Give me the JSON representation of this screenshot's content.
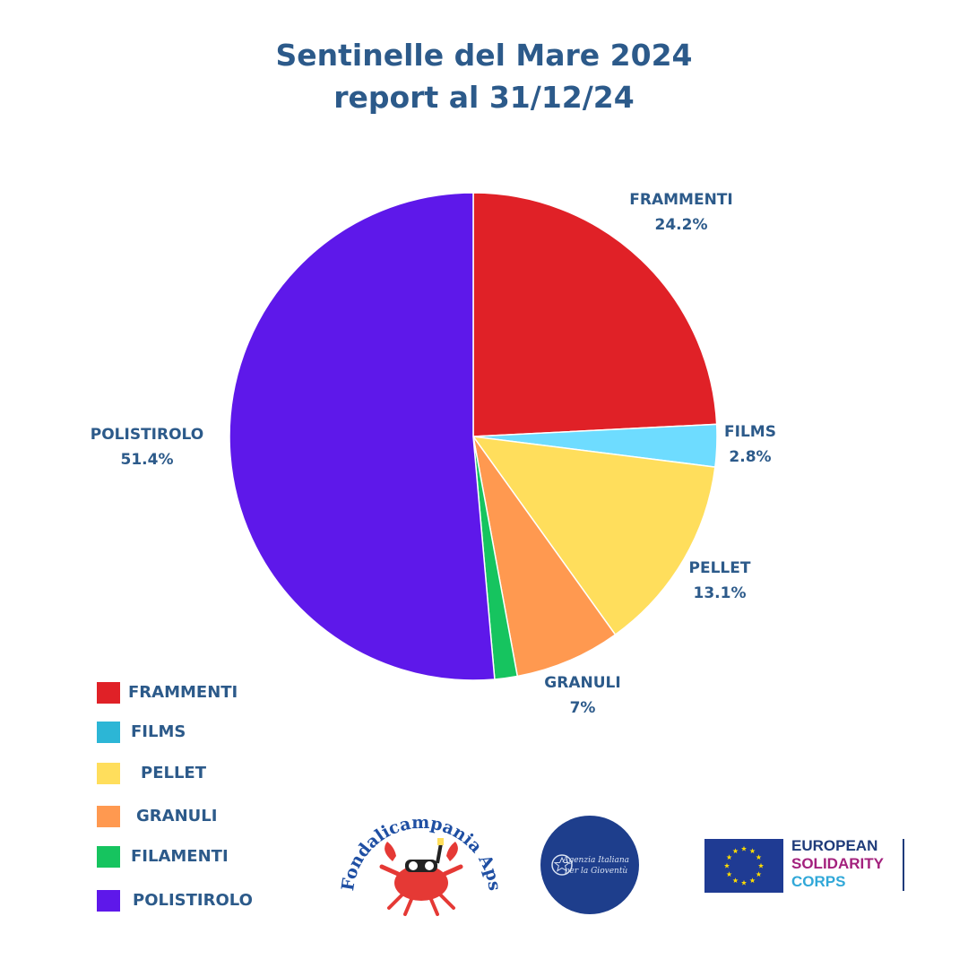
{
  "title": {
    "line1": "Sentinelle del Mare 2024",
    "line2": "report al 31/12/24"
  },
  "chart_data": {
    "type": "pie",
    "title": "Sentinelle del Mare 2024 report al 31/12/24",
    "slices": [
      {
        "label": "FRAMMENTI",
        "value": 24.2,
        "value_label": "24.2%",
        "color": "#e02127"
      },
      {
        "label": "FILMS",
        "value": 2.8,
        "value_label": "2.8%",
        "color": "#6edcff"
      },
      {
        "label": "PELLET",
        "value": 13.1,
        "value_label": "13.1%",
        "color": "#ffde5c"
      },
      {
        "label": "GRANULI",
        "value": 7,
        "value_label": "7%",
        "color": "#ff9950"
      },
      {
        "label": "FILAMENTI",
        "value": 1.5,
        "color": "#16c45f"
      },
      {
        "label": "POLISTIROLO",
        "value": 51.4,
        "value_label": "51.4%",
        "color": "#5e18ea"
      }
    ],
    "start_angle": "12 o'clock, clockwise",
    "legend_position": "bottom-left"
  },
  "legend": [
    {
      "label": "FRAMMENTI",
      "color": "#e02127"
    },
    {
      "label": "FILMS",
      "color": "#2cb6d6"
    },
    {
      "label": "PELLET",
      "color": "#ffde5c"
    },
    {
      "label": "GRANULI",
      "color": "#ff9950"
    },
    {
      "label": "FILAMENTI",
      "color": "#16c45f"
    },
    {
      "label": "POLISTIROLO",
      "color": "#5e18ea"
    }
  ],
  "logos": {
    "fondali": {
      "text": "Fondalicampania Aps",
      "icon": "crab-icon",
      "color": "#1f4fa3"
    },
    "agenzia": {
      "text_line1": "Agenzia Italiana",
      "text_line2": "per la Gioventù",
      "icon": "italian-emblem-icon",
      "color": "#1e3e8c"
    },
    "esc": {
      "line1": "EUROPEAN",
      "line2": "SOLIDARITY",
      "line3": "CORPS",
      "icon": "eu-flag-icon",
      "colors": {
        "line1": "#1f3b7a",
        "line2": "#a3217d",
        "line3": "#31a8d8",
        "flag": "#1f3b93",
        "stars": "#ffdd00"
      }
    }
  }
}
